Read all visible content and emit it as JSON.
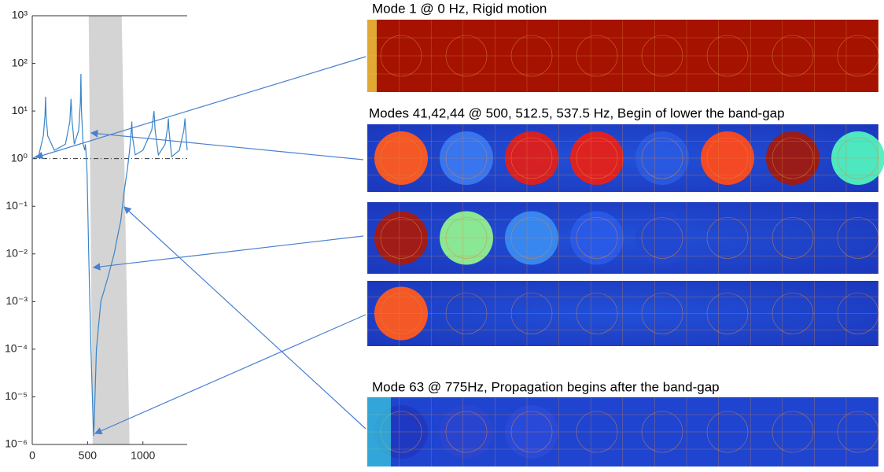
{
  "chart_data": {
    "type": "line",
    "yscale": "log",
    "x": [
      0,
      60,
      100,
      115,
      120,
      125,
      140,
      200,
      300,
      340,
      350,
      360,
      380,
      420,
      435,
      440,
      445,
      460,
      475,
      480,
      485,
      495,
      510,
      530,
      550,
      555,
      560,
      580,
      620,
      680,
      740,
      780,
      800,
      830,
      860,
      880,
      895,
      900,
      905,
      930,
      1000,
      1080,
      1100,
      1110,
      1140,
      1200,
      1225,
      1230,
      1235,
      1260,
      1330,
      1370,
      1380,
      1390,
      1400
    ],
    "series": [
      {
        "color": "#3a85c8",
        "values": [
          1,
          1.2,
          3,
          8,
          20,
          8,
          3,
          1.5,
          2,
          6,
          18,
          6,
          2,
          4,
          15,
          60,
          10,
          2,
          1.5,
          2,
          1.5,
          0.5,
          0.01,
          0.0001,
          3e-06,
          1.5e-06,
          3e-06,
          0.0001,
          0.001,
          0.003,
          0.01,
          0.03,
          0.05,
          0.2,
          0.6,
          1.5,
          4,
          6,
          3,
          1.2,
          1.5,
          4,
          10,
          4,
          1.2,
          2,
          5,
          7,
          4,
          1.1,
          1.5,
          4,
          7,
          3,
          1.5
        ]
      }
    ],
    "xlim": [
      0,
      1400
    ],
    "xticks": [
      0,
      500,
      1000
    ],
    "ylim": [
      1e-06,
      1000
    ],
    "yticks": [
      {
        "value": 1000,
        "label": "10³"
      },
      {
        "value": 100,
        "label": "10²"
      },
      {
        "value": 10,
        "label": "10¹"
      },
      {
        "value": 1,
        "label": "10⁰"
      },
      {
        "value": 0.1,
        "label": "10⁻¹"
      },
      {
        "value": 0.01,
        "label": "10⁻²"
      },
      {
        "value": 0.001,
        "label": "10⁻³"
      },
      {
        "value": 0.0001,
        "label": "10⁻⁴"
      },
      {
        "value": 1e-05,
        "label": "10⁻⁵"
      },
      {
        "value": 1e-06,
        "label": "10⁻⁶"
      }
    ],
    "reference_line": 1,
    "band_gap": {
      "x_at_top": [
        510,
        808
      ],
      "x_at_bottom": [
        546,
        879
      ],
      "color": "#d4d4d4"
    }
  },
  "captions": [
    "Mode 1 @ 0 Hz, Rigid motion",
    "Modes 41,42,44 @ 500, 512.5, 537.5 Hz, Begin of lower the band-gap",
    "Mode 63 @  775Hz, Propagation begins after the band-gap"
  ]
}
